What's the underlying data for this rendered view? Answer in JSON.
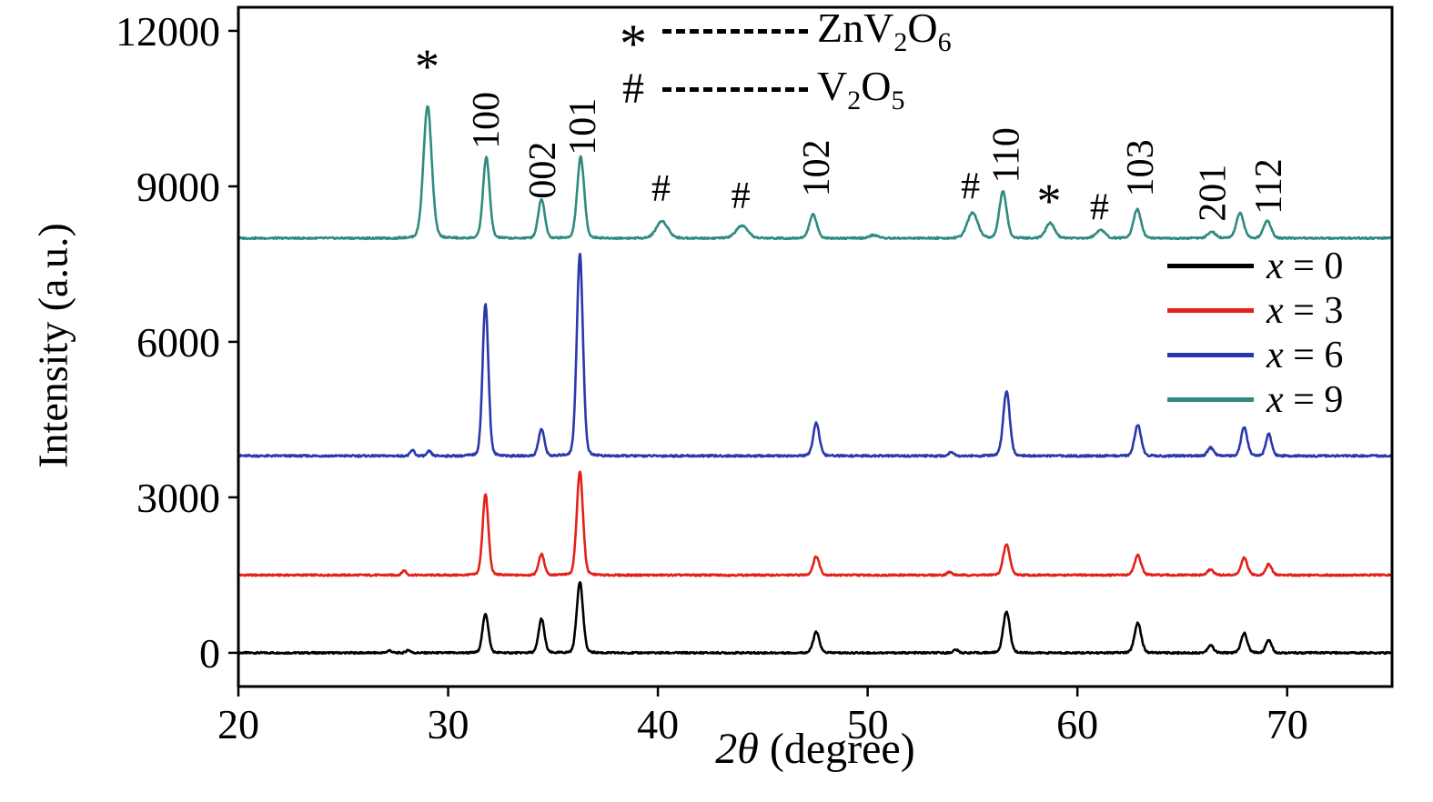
{
  "figure": {
    "background": "#ffffff"
  },
  "axes": {
    "x": {
      "label_math": "2θ",
      "label_rest": " (degree)"
    },
    "y": {
      "label": "Intensity (a.u.)"
    }
  },
  "marker_legend": [
    {
      "symbol": "*",
      "label_parts": [
        {
          "t": "ZnV"
        },
        {
          "t": "2",
          "sub": true
        },
        {
          "t": "O"
        },
        {
          "t": "6",
          "sub": true
        }
      ]
    },
    {
      "symbol": "#",
      "label_parts": [
        {
          "t": "V"
        },
        {
          "t": "2",
          "sub": true
        },
        {
          "t": "O"
        },
        {
          "t": "5",
          "sub": true
        }
      ]
    }
  ],
  "series_legend": [
    {
      "var": "x",
      "value": "0",
      "color": "#000000"
    },
    {
      "var": "x",
      "value": "3",
      "color": "#e3211a"
    },
    {
      "var": "x",
      "value": "6",
      "color": "#2a38ac"
    },
    {
      "var": "x",
      "value": "9",
      "color": "#2f8b80"
    }
  ],
  "chart_data": {
    "type": "line",
    "title": "",
    "xlabel": "2θ (degree)",
    "ylabel": "Intensity (a.u.)",
    "xlim": [
      20,
      75
    ],
    "ylim": [
      -650,
      12455
    ],
    "x_ticks": [
      20,
      30,
      40,
      50,
      60,
      70
    ],
    "y_ticks": [
      0,
      3000,
      6000,
      9000,
      12000
    ],
    "peaks_format": "[two_theta_deg, peak_height_counts, sigma_deg]",
    "series": [
      {
        "id": "x0",
        "name": "x = 0",
        "color": "#000000",
        "baseline": 0,
        "noise": 16,
        "peaks": [
          [
            27.2,
            45,
            0.1
          ],
          [
            28.1,
            55,
            0.1
          ],
          [
            31.78,
            760,
            0.14
          ],
          [
            34.45,
            660,
            0.14
          ],
          [
            36.28,
            1380,
            0.15
          ],
          [
            47.55,
            400,
            0.15
          ],
          [
            54.2,
            60,
            0.12
          ],
          [
            56.62,
            800,
            0.16
          ],
          [
            62.88,
            580,
            0.16
          ],
          [
            66.35,
            150,
            0.14
          ],
          [
            67.95,
            380,
            0.15
          ],
          [
            69.12,
            250,
            0.14
          ]
        ]
      },
      {
        "id": "x3",
        "name": "x = 3",
        "color": "#e3211a",
        "baseline": 1500,
        "noise": 16,
        "peaks": [
          [
            27.9,
            90,
            0.1
          ],
          [
            31.78,
            1560,
            0.14
          ],
          [
            34.45,
            400,
            0.14
          ],
          [
            36.28,
            2010,
            0.15
          ],
          [
            47.55,
            360,
            0.15
          ],
          [
            53.9,
            60,
            0.12
          ],
          [
            56.62,
            590,
            0.16
          ],
          [
            62.88,
            380,
            0.16
          ],
          [
            66.35,
            110,
            0.14
          ],
          [
            67.95,
            330,
            0.15
          ],
          [
            69.12,
            210,
            0.14
          ]
        ]
      },
      {
        "id": "x6",
        "name": "x = 6",
        "color": "#2a38ac",
        "baseline": 3800,
        "noise": 18,
        "peaks": [
          [
            28.3,
            110,
            0.1
          ],
          [
            29.1,
            90,
            0.1
          ],
          [
            31.78,
            2950,
            0.14
          ],
          [
            34.45,
            520,
            0.14
          ],
          [
            36.28,
            3900,
            0.15
          ],
          [
            47.55,
            640,
            0.15
          ],
          [
            54.0,
            80,
            0.12
          ],
          [
            56.62,
            1250,
            0.16
          ],
          [
            62.88,
            600,
            0.16
          ],
          [
            66.35,
            160,
            0.14
          ],
          [
            67.95,
            560,
            0.15
          ],
          [
            69.12,
            420,
            0.14
          ]
        ]
      },
      {
        "id": "x9",
        "name": "x = 9",
        "color": "#2f8b80",
        "baseline": 8000,
        "noise": 16,
        "peaks": [
          [
            29.02,
            2560,
            0.2
          ],
          [
            31.82,
            1560,
            0.16
          ],
          [
            34.45,
            760,
            0.16
          ],
          [
            36.32,
            1570,
            0.17
          ],
          [
            40.2,
            330,
            0.28
          ],
          [
            44.0,
            240,
            0.28
          ],
          [
            47.4,
            460,
            0.18
          ],
          [
            50.3,
            60,
            0.2
          ],
          [
            55.0,
            500,
            0.25
          ],
          [
            56.45,
            900,
            0.18
          ],
          [
            58.7,
            290,
            0.22
          ],
          [
            61.1,
            160,
            0.22
          ],
          [
            62.85,
            560,
            0.18
          ],
          [
            66.4,
            130,
            0.18
          ],
          [
            67.75,
            480,
            0.18
          ],
          [
            69.05,
            340,
            0.18
          ]
        ]
      }
    ],
    "annotations": [
      {
        "text": "*",
        "x": 29.0,
        "y": 11000,
        "rot": false,
        "size": 54
      },
      {
        "text": "100",
        "x": 32.4,
        "y": 9720,
        "rot": true,
        "size": 42
      },
      {
        "text": "002",
        "x": 35.1,
        "y": 8760,
        "rot": true,
        "size": 42
      },
      {
        "text": "101",
        "x": 37.0,
        "y": 9600,
        "rot": true,
        "size": 42
      },
      {
        "text": "#",
        "x": 40.15,
        "y": 8720,
        "rot": false,
        "size": 42
      },
      {
        "text": "#",
        "x": 43.95,
        "y": 8580,
        "rot": false,
        "size": 42
      },
      {
        "text": "102",
        "x": 48.15,
        "y": 8800,
        "rot": true,
        "size": 42
      },
      {
        "text": "#",
        "x": 54.9,
        "y": 8760,
        "rot": false,
        "size": 42
      },
      {
        "text": "110",
        "x": 57.2,
        "y": 9060,
        "rot": true,
        "size": 42
      },
      {
        "text": "*",
        "x": 58.65,
        "y": 8400,
        "rot": false,
        "size": 54
      },
      {
        "text": "#",
        "x": 61.05,
        "y": 8360,
        "rot": false,
        "size": 42
      },
      {
        "text": "103",
        "x": 63.6,
        "y": 8800,
        "rot": true,
        "size": 42
      },
      {
        "text": "201",
        "x": 67.05,
        "y": 8320,
        "rot": true,
        "size": 42
      },
      {
        "text": "112",
        "x": 69.7,
        "y": 8460,
        "rot": true,
        "size": 42
      }
    ]
  }
}
